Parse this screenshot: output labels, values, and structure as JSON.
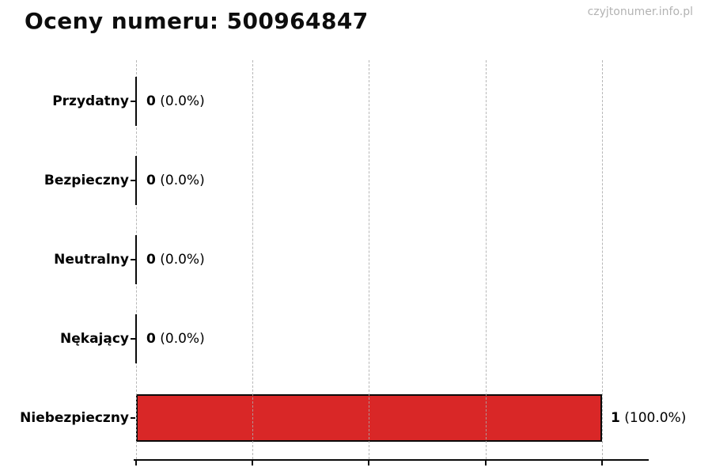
{
  "page": {
    "watermark": "czyjtonumer.info.pl"
  },
  "colors": {
    "background": "#ffffff",
    "bar_red": "#d92727",
    "bar_edge": "#0a0a0a",
    "gridline": "#c9c9c9",
    "watermark_gray": "#b3b3b3",
    "text": "#000000"
  },
  "chart_data": {
    "type": "bar",
    "orientation": "horizontal",
    "title": "Oceny numeru: 500964847",
    "categories": [
      "Przydatny",
      "Bezpieczny",
      "Neutralny",
      "Nękający",
      "Niebezpieczny"
    ],
    "values": [
      0,
      0,
      0,
      0,
      1
    ],
    "counts": [
      "0",
      "0",
      "0",
      "0",
      "1"
    ],
    "pcts": [
      "(0.0%)",
      "(0.0%)",
      "(0.0%)",
      "(0.0%)",
      "(100.0%)"
    ],
    "bar_colors": [
      null,
      null,
      null,
      null,
      "#d92727"
    ],
    "bar_edge_color": "#0a0a0a",
    "xlim": [
      0,
      1.097
    ],
    "xticks": [
      0,
      0.25,
      0.5,
      0.75,
      1.0
    ],
    "grid": {
      "axis": "x",
      "style": "dashed",
      "color": "#c9c9c9"
    },
    "legend": "none",
    "xlabel": "",
    "ylabel": ""
  }
}
